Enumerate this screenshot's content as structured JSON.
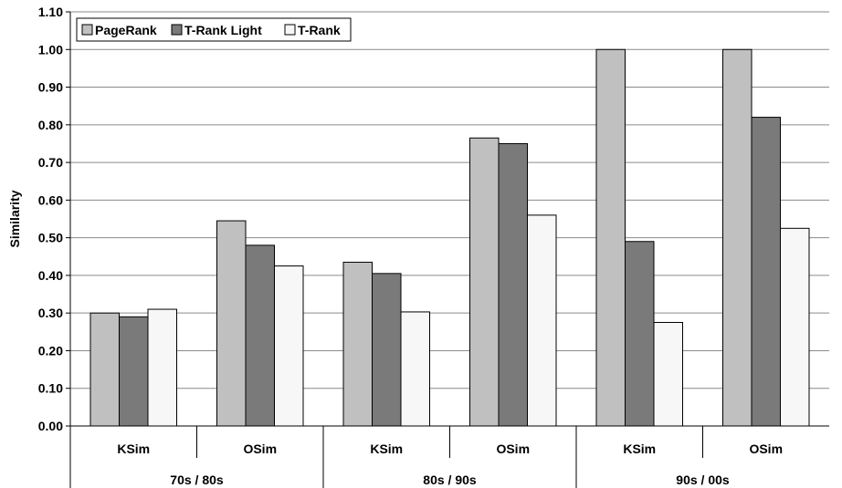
{
  "chart_data": {
    "type": "bar",
    "ylabel": "Similarity",
    "ylim": [
      0,
      1.1
    ],
    "ytick_step": 0.1,
    "ytick_labels": [
      "0.00",
      "0.10",
      "0.20",
      "0.30",
      "0.40",
      "0.50",
      "0.60",
      "0.70",
      "0.80",
      "0.90",
      "1.00",
      "1.10"
    ],
    "groups": [
      {
        "label": "70s / 80s",
        "categories": [
          "KSim",
          "OSim"
        ]
      },
      {
        "label": "80s / 90s",
        "categories": [
          "KSim",
          "OSim"
        ]
      },
      {
        "label": "90s / 00s",
        "categories": [
          "KSim",
          "OSim"
        ]
      }
    ],
    "categories": [
      "KSim",
      "OSim",
      "KSim",
      "OSim",
      "KSim",
      "OSim"
    ],
    "series": [
      {
        "name": "PageRank",
        "color": "#c0c0c0",
        "values": [
          0.3,
          0.545,
          0.435,
          0.765,
          1.0,
          1.0
        ]
      },
      {
        "name": "T-Rank Light",
        "color": "#7a7a7a",
        "values": [
          0.29,
          0.48,
          0.405,
          0.75,
          0.49,
          0.82
        ]
      },
      {
        "name": "T-Rank",
        "color": "#f7f7f7",
        "values": [
          0.31,
          0.425,
          0.303,
          0.56,
          0.275,
          0.525
        ]
      }
    ],
    "grid": true,
    "legend_position": "top-left"
  }
}
